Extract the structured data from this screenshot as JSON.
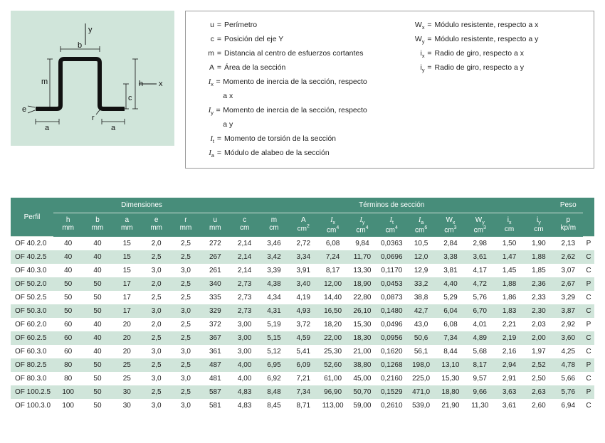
{
  "legend": {
    "left": [
      {
        "sym": "u",
        "label": "Perímetro"
      },
      {
        "sym": "c",
        "label": "Posición del eje Y"
      },
      {
        "sym": "m",
        "label": "Distancia al centro de esfuerzos cortantes"
      },
      {
        "sym": "A",
        "label": "Área de la sección"
      },
      {
        "sym": "I_x",
        "label": "Momento de inercia de la sección, respecto a x",
        "italic": true
      },
      {
        "sym": "I_y",
        "label": "Momento de inercia de la sección, respecto a y",
        "italic": true
      },
      {
        "sym": "I_t",
        "label": "Momento de torsión de la sección",
        "italic": true
      },
      {
        "sym": "I_a",
        "label": "Módulo de alabeo de la sección",
        "italic": true
      }
    ],
    "right": [
      {
        "sym": "W_x",
        "label": "Módulo resistente, respecto a x"
      },
      {
        "sym": "W_y",
        "label": "Módulo resistente, respecto a y"
      },
      {
        "sym": "i_x",
        "label": "Radio de giro, respecto a x"
      },
      {
        "sym": "i_y",
        "label": "Radio de giro, respecto a y"
      }
    ]
  },
  "table": {
    "group_headers": {
      "dim": "Dimensiones",
      "term": "Términos de sección",
      "peso": "Peso",
      "perfil": "Perfil"
    },
    "columns": [
      {
        "l1": "h",
        "l2": "mm"
      },
      {
        "l1": "b",
        "l2": "mm"
      },
      {
        "l1": "a",
        "l2": "mm"
      },
      {
        "l1": "e",
        "l2": "mm"
      },
      {
        "l1": "r",
        "l2": "mm"
      },
      {
        "l1": "u",
        "l2": "mm"
      },
      {
        "l1": "c",
        "l2": "cm"
      },
      {
        "l1": "m",
        "l2": "cm"
      },
      {
        "l1": "A",
        "l2": "cm",
        "sup": "2"
      },
      {
        "l1": "I",
        "sub": "x",
        "l2": "cm",
        "sup": "4",
        "it": true
      },
      {
        "l1": "I",
        "sub": "y",
        "l2": "cm",
        "sup": "4",
        "it": true
      },
      {
        "l1": "I",
        "sub": "t",
        "l2": "cm",
        "sup": "4",
        "it": true
      },
      {
        "l1": "I",
        "sub": "a",
        "l2": "cm",
        "sup": "6",
        "it": true
      },
      {
        "l1": "W",
        "sub": "x",
        "l2": "cm",
        "sup": "3"
      },
      {
        "l1": "W",
        "sub": "y",
        "l2": "cm",
        "sup": "3"
      },
      {
        "l1": "i",
        "sub": "x",
        "l2": "cm"
      },
      {
        "l1": "i",
        "sub": "y",
        "l2": "cm"
      },
      {
        "l1": "p",
        "l2": "kp/m"
      }
    ],
    "rows": [
      {
        "p": "OF  40.2.0",
        "v": [
          "40",
          "40",
          "15",
          "2,0",
          "2,5",
          "272",
          "2,14",
          "3,46",
          "2,72",
          "6,08",
          "9,84",
          "0,0363",
          "10,5",
          "2,84",
          "2,98",
          "1,50",
          "1,90",
          "2,13"
        ],
        "t": "P"
      },
      {
        "p": "OF  40.2.5",
        "v": [
          "40",
          "40",
          "15",
          "2,5",
          "2,5",
          "267",
          "2,14",
          "3,42",
          "3,34",
          "7,24",
          "11,70",
          "0,0696",
          "12,0",
          "3,38",
          "3,61",
          "1,47",
          "1,88",
          "2,62"
        ],
        "t": "C",
        "alt": true
      },
      {
        "p": "OF  40.3.0",
        "v": [
          "40",
          "40",
          "15",
          "3,0",
          "3,0",
          "261",
          "2,14",
          "3,39",
          "3,91",
          "8,17",
          "13,30",
          "0,1170",
          "12,9",
          "3,81",
          "4,17",
          "1,45",
          "1,85",
          "3,07"
        ],
        "t": "C"
      },
      {
        "p": "OF  50.2.0",
        "v": [
          "50",
          "50",
          "17",
          "2,0",
          "2,5",
          "340",
          "2,73",
          "4,38",
          "3,40",
          "12,00",
          "18,90",
          "0,0453",
          "33,2",
          "4,40",
          "4,72",
          "1,88",
          "2,36",
          "2,67"
        ],
        "t": "P",
        "alt": true
      },
      {
        "p": "OF  50.2.5",
        "v": [
          "50",
          "50",
          "17",
          "2,5",
          "2,5",
          "335",
          "2,73",
          "4,34",
          "4,19",
          "14,40",
          "22,80",
          "0,0873",
          "38,8",
          "5,29",
          "5,76",
          "1,86",
          "2,33",
          "3,29"
        ],
        "t": "C"
      },
      {
        "p": "OF  50.3.0",
        "v": [
          "50",
          "50",
          "17",
          "3,0",
          "3,0",
          "329",
          "2,73",
          "4,31",
          "4,93",
          "16,50",
          "26,10",
          "0,1480",
          "42,7",
          "6,04",
          "6,70",
          "1,83",
          "2,30",
          "3,87"
        ],
        "t": "C",
        "alt": true
      },
      {
        "p": "OF  60.2.0",
        "v": [
          "60",
          "40",
          "20",
          "2,0",
          "2,5",
          "372",
          "3,00",
          "5,19",
          "3,72",
          "18,20",
          "15,30",
          "0,0496",
          "43,0",
          "6,08",
          "4,01",
          "2,21",
          "2,03",
          "2,92"
        ],
        "t": "P"
      },
      {
        "p": "OF  60.2.5",
        "v": [
          "60",
          "40",
          "20",
          "2,5",
          "2,5",
          "367",
          "3,00",
          "5,15",
          "4,59",
          "22,00",
          "18,30",
          "0,0956",
          "50,6",
          "7,34",
          "4,89",
          "2,19",
          "2,00",
          "3,60"
        ],
        "t": "C",
        "alt": true
      },
      {
        "p": "OF  60.3.0",
        "v": [
          "60",
          "40",
          "20",
          "3,0",
          "3,0",
          "361",
          "3,00",
          "5,12",
          "5,41",
          "25,30",
          "21,00",
          "0,1620",
          "56,1",
          "8,44",
          "5,68",
          "2,16",
          "1,97",
          "4,25"
        ],
        "t": "C"
      },
      {
        "p": "OF  80.2.5",
        "v": [
          "80",
          "50",
          "25",
          "2,5",
          "2,5",
          "487",
          "4,00",
          "6,95",
          "6,09",
          "52,60",
          "38,80",
          "0,1268",
          "198,0",
          "13,10",
          "8,17",
          "2,94",
          "2,52",
          "4,78"
        ],
        "t": "P",
        "alt": true
      },
      {
        "p": "OF  80.3.0",
        "v": [
          "80",
          "50",
          "25",
          "3,0",
          "3,0",
          "481",
          "4,00",
          "6,92",
          "7,21",
          "61,00",
          "45,00",
          "0,2160",
          "225,0",
          "15,30",
          "9,57",
          "2,91",
          "2,50",
          "5,66"
        ],
        "t": "C"
      },
      {
        "p": "OF 100.2.5",
        "v": [
          "100",
          "50",
          "30",
          "2,5",
          "2,5",
          "587",
          "4,83",
          "8,48",
          "7,34",
          "96,90",
          "50,70",
          "0,1529",
          "471,0",
          "18,80",
          "9,66",
          "3,63",
          "2,63",
          "5,76"
        ],
        "t": "P",
        "alt": true
      },
      {
        "p": "OF 100.3.0",
        "v": [
          "100",
          "50",
          "30",
          "3,0",
          "3,0",
          "581",
          "4,83",
          "8,45",
          "8,71",
          "113,00",
          "59,00",
          "0,2610",
          "539,0",
          "21,90",
          "11,30",
          "3,61",
          "2,60",
          "6,94"
        ],
        "t": "C"
      }
    ]
  },
  "colors": {
    "header": "#478d7a",
    "alt": "#d0e5da",
    "diagram_bg": "#d0e5da"
  },
  "diagram_labels": {
    "y": "y",
    "x": "x",
    "b": "b",
    "m": "m",
    "h": "h",
    "c": "c",
    "r": "r",
    "e": "e",
    "a": "a"
  }
}
